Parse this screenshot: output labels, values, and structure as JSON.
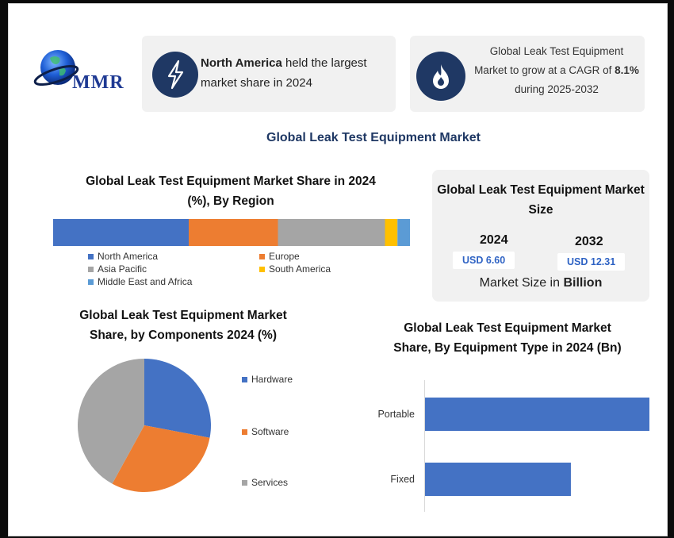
{
  "logo": {
    "text": "MMR"
  },
  "highlights": [
    {
      "icon": "lightning-icon",
      "bold": "North America",
      "rest": " held the largest market share in 2024"
    },
    {
      "icon": "flame-icon",
      "line1": "Global Leak Test Equipment Market to grow at a CAGR of",
      "bold": "8.1%",
      "rest": " during 2025-2032"
    }
  ],
  "main_title": "Global Leak Test Equipment Market",
  "market_size": {
    "title": "Global Leak Test Equipment Market Size",
    "years": [
      {
        "year": "2024",
        "value": "USD 6.60"
      },
      {
        "year": "2032",
        "value": "USD 12.31"
      }
    ],
    "caption_prefix": "Market Size in ",
    "caption_bold": "Billion"
  },
  "colors": {
    "blue": "#4472c4",
    "orange": "#ed7d31",
    "gray": "#a5a5a5",
    "yellow": "#ffc000",
    "lightblue": "#5b9bd5",
    "navy": "#1f3864"
  },
  "chart_data": [
    {
      "type": "bar",
      "orientation": "stacked-horizontal",
      "title": "Global Leak Test Equipment Market Share in 2024 (%), By Region",
      "series": [
        {
          "name": "North America",
          "value": 38,
          "color": "#4472c4"
        },
        {
          "name": "Europe",
          "value": 25,
          "color": "#ed7d31"
        },
        {
          "name": "Asia Pacific",
          "value": 30,
          "color": "#a5a5a5"
        },
        {
          "name": "South America",
          "value": 3.5,
          "color": "#ffc000"
        },
        {
          "name": "Middle East and Africa",
          "value": 3.5,
          "color": "#5b9bd5"
        }
      ],
      "legend_order": [
        "North America",
        "Europe",
        "Asia Pacific",
        "South America",
        "Middle East and Africa"
      ],
      "legend": "bottom"
    },
    {
      "type": "pie",
      "title": "Global Leak Test Equipment Market Share, by Components 2024 (%)",
      "slices": [
        {
          "name": "Hardware",
          "value": 28,
          "color": "#4472c4"
        },
        {
          "name": "Software",
          "value": 30,
          "color": "#ed7d31"
        },
        {
          "name": "Services",
          "value": 42,
          "color": "#a5a5a5"
        }
      ],
      "legend": "right"
    },
    {
      "type": "bar",
      "orientation": "horizontal",
      "title": "Global Leak Test Equipment Market Share, By Equipment Type in 2024 (Bn)",
      "categories": [
        "Portable",
        "Fixed"
      ],
      "values": [
        4.0,
        2.6
      ],
      "xlim": [
        0,
        4.0
      ],
      "color": "#4472c4",
      "grid": false
    }
  ]
}
